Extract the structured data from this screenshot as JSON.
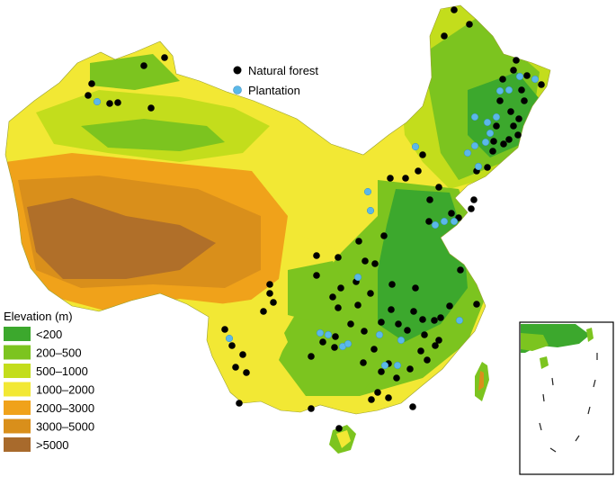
{
  "legend": {
    "natural_forest_label": "Natural forest",
    "plantation_label": "Plantation",
    "natural_forest_color": "#000000",
    "plantation_color": "#5bb8e8"
  },
  "elevation_legend": {
    "title": "Elevation (m)",
    "classes": [
      {
        "label": "<200",
        "color": "#3ca82d"
      },
      {
        "label": "200–500",
        "color": "#7cc41f"
      },
      {
        "label": "500–1000",
        "color": "#c3dd1c"
      },
      {
        "label": "1000–2000",
        "color": "#f2e834"
      },
      {
        "label": "2000–3000",
        "color": "#f0a21a"
      },
      {
        "label": "3000–5000",
        "color": "#d98f1b"
      },
      {
        "label": ">5000",
        "color": "#a86a2c"
      }
    ]
  },
  "colors": {
    "ocean": "#ffffff",
    "inset_border": "#000000"
  }
}
